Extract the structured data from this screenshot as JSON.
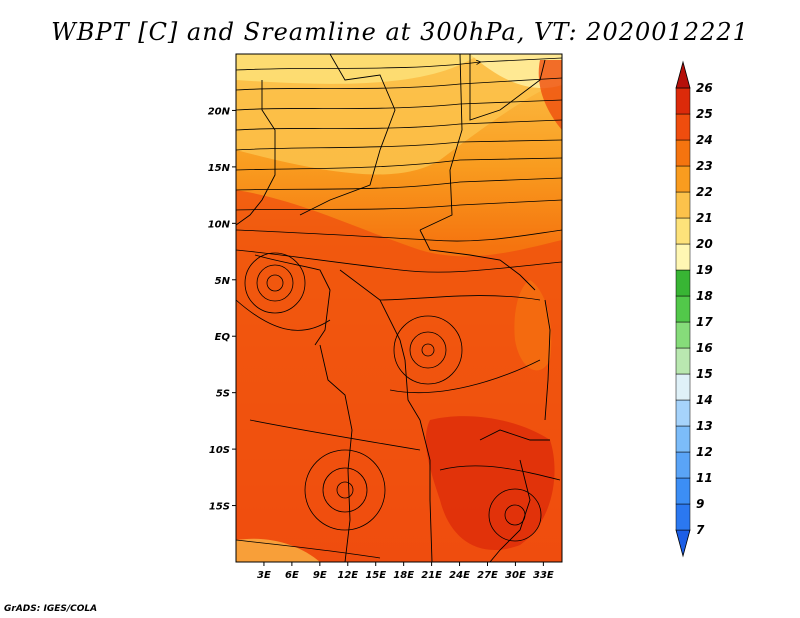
{
  "title": "WBPT [C] and Sreamline at 300hPa, VT: 2020012221",
  "credit": "GrADS: IGES/COLA",
  "map": {
    "lat_labels": [
      "20N",
      "15N",
      "10N",
      "5N",
      "EQ",
      "5S",
      "10S",
      "15S"
    ],
    "lon_labels": [
      "3E",
      "6E",
      "9E",
      "12E",
      "15E",
      "18E",
      "21E",
      "24E",
      "27E",
      "30E",
      "33E"
    ],
    "lat_values": [
      20,
      15,
      10,
      5,
      0,
      -5,
      -10,
      -15
    ],
    "lon_values": [
      3,
      6,
      9,
      12,
      15,
      18,
      21,
      24,
      27,
      30,
      33
    ],
    "lon_range": [
      0,
      35
    ],
    "lat_range": [
      -20,
      25
    ]
  },
  "colorbar": {
    "labels": [
      "7",
      "9",
      "11",
      "12",
      "13",
      "14",
      "15",
      "16",
      "17",
      "18",
      "19",
      "20",
      "21",
      "22",
      "23",
      "24",
      "25",
      "26"
    ],
    "colors": [
      "#1c5ee6",
      "#2b78f0",
      "#3c8ef5",
      "#5aa4f7",
      "#7cbcf9",
      "#a6d3fb",
      "#dff1f8",
      "#b9e8b0",
      "#86dc7a",
      "#52c84a",
      "#38b534",
      "#fff7b3",
      "#fde27a",
      "#fcc24b",
      "#f99c1f",
      "#f5740f",
      "#ef4d0e",
      "#dc2a0a",
      "#b5100a"
    ]
  }
}
